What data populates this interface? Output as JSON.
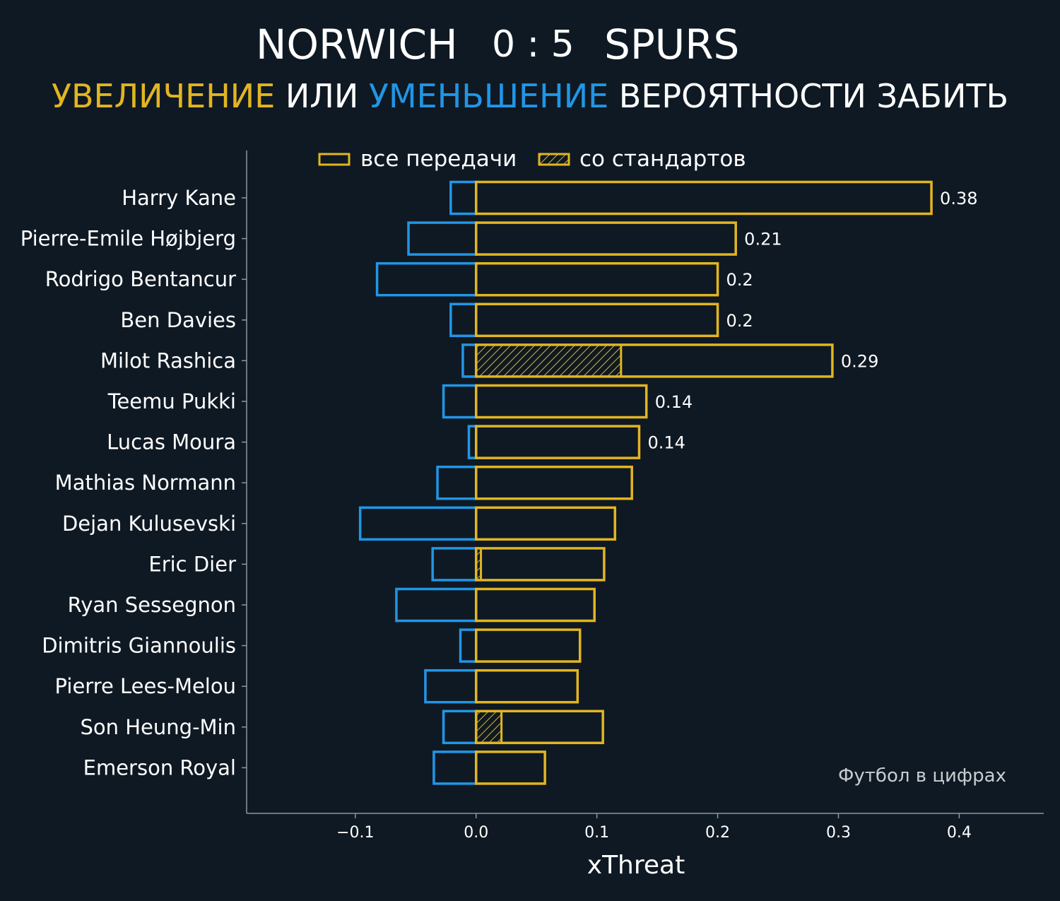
{
  "header": {
    "home_team": "NORWICH",
    "score": "0 : 5",
    "away_team": "SPURS",
    "subtitle_increase": "УВЕЛИЧЕНИЕ",
    "subtitle_or": " ИЛИ ",
    "subtitle_decrease": "УМЕНЬШЕНИЕ",
    "subtitle_rest": " ВЕРОЯТНОСТИ ЗАБИТЬ"
  },
  "colors": {
    "background": "#0f1923",
    "positive": "#e2b521",
    "negative": "#2196e6",
    "text": "#ffffff",
    "axis": "#8a98a3",
    "watermark": "#c8ccd0"
  },
  "watermark": "Футбол в цифрах",
  "chart_data": {
    "type": "bar",
    "orientation": "horizontal",
    "xlabel": "xThreat",
    "xlim": [
      -0.19,
      0.47
    ],
    "xticks": [
      -0.1,
      0.0,
      0.1,
      0.2,
      0.3,
      0.4
    ],
    "xtick_labels": [
      "−0.1",
      "0.0",
      "0.1",
      "0.2",
      "0.3",
      "0.4"
    ],
    "grid": false,
    "legend_position": "top-center",
    "legend": [
      {
        "label": "все передачи",
        "style": "outline"
      },
      {
        "label": "со стандартов",
        "style": "hatched"
      }
    ],
    "categories": [
      "Harry Kane",
      "Pierre-Emile Højbjerg",
      "Rodrigo Bentancur",
      "Ben Davies",
      "Milot Rashica",
      "Teemu Pukki",
      "Lucas Moura",
      "Mathias Normann",
      "Dejan Kulusevski",
      "Eric Dier",
      "Ryan Sessegnon",
      "Dimitris Giannoulis",
      "Pierre Lees-Melou",
      "Son Heung-Min",
      "Emerson Royal"
    ],
    "series": [
      {
        "name": "все передачи",
        "values": [
          0.377,
          0.215,
          0.2,
          0.2,
          0.295,
          0.141,
          0.135,
          0.129,
          0.115,
          0.106,
          0.098,
          0.086,
          0.084,
          0.105,
          0.057
        ]
      },
      {
        "name": "со стандартов",
        "values": [
          0,
          0,
          0,
          0,
          0.12,
          0,
          0,
          0,
          0,
          0.004,
          0,
          0,
          0,
          0.021,
          0
        ]
      },
      {
        "values": [
          -0.021,
          -0.056,
          -0.082,
          -0.021,
          -0.011,
          -0.027,
          -0.006,
          -0.032,
          -0.096,
          -0.036,
          -0.066,
          -0.013,
          -0.042,
          -0.027,
          -0.035
        ]
      }
    ],
    "value_labels": [
      "0.38",
      "0.21",
      "0.2",
      "0.2",
      "0.29",
      "0.14",
      "0.14",
      "",
      "",
      "",
      "",
      "",
      "",
      "",
      ""
    ]
  }
}
